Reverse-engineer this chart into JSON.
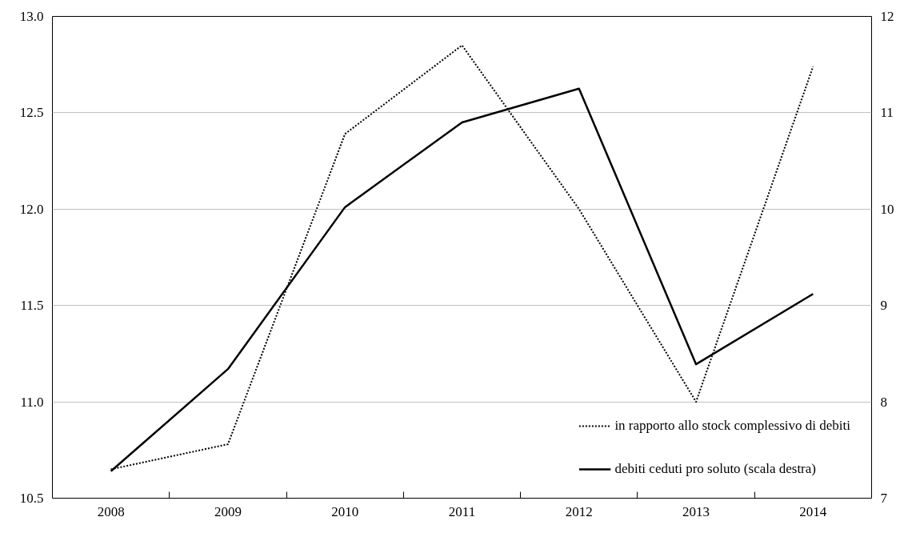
{
  "chart_data": {
    "type": "line",
    "categories": [
      "2008",
      "2009",
      "2010",
      "2011",
      "2012",
      "2013",
      "2014"
    ],
    "series": [
      {
        "name": "in rapporto allo stock complessivo di debiti",
        "color": "#000000",
        "line_style": "dotted",
        "values": [
          10.65,
          10.78,
          12.39,
          12.85,
          12.0,
          11.0,
          12.74
        ]
      },
      {
        "name": "debiti ceduti pro soluto (scala destra)",
        "color": "#000000",
        "line_style": "solid",
        "axis": "y2",
        "values": [
          7.28,
          8.34,
          10.02,
          10.9,
          11.25,
          8.39,
          9.12
        ]
      }
    ],
    "ylim": [
      10.5,
      13.0
    ],
    "yticks": [
      {
        "value": 10.5,
        "label": "10.5"
      },
      {
        "value": 11.0,
        "label": "11.0"
      },
      {
        "value": 11.5,
        "label": "11.5"
      },
      {
        "value": 12.0,
        "label": "12.0"
      },
      {
        "value": 12.5,
        "label": "12.5"
      },
      {
        "value": 13.0,
        "label": "13.0"
      }
    ],
    "y2lim": [
      7,
      12
    ],
    "y2ticks": [
      7,
      8,
      9,
      10,
      11,
      12
    ],
    "grid": "y",
    "legend": "bottom right",
    "marker": "none"
  }
}
